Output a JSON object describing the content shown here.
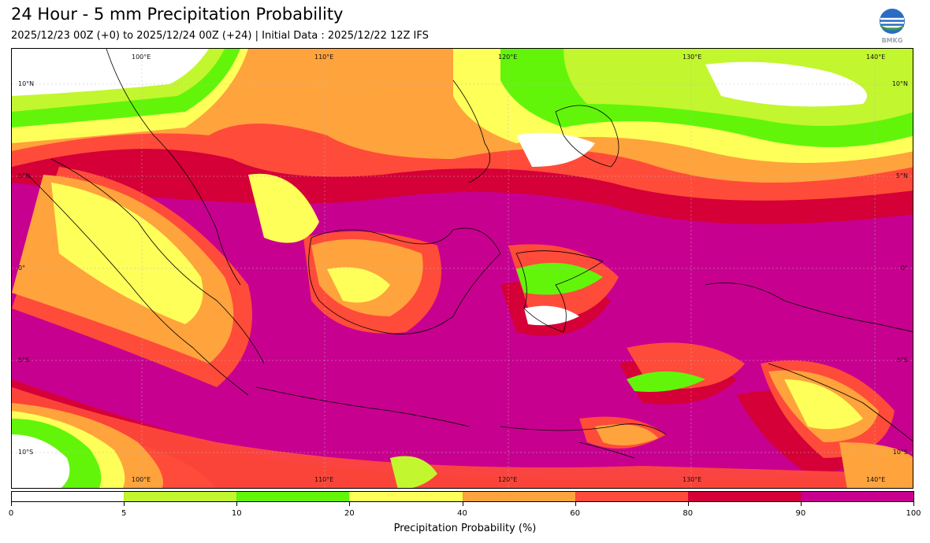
{
  "header": {
    "title": "24 Hour - 5 mm Precipitation Probability",
    "subtitle": "2025/12/23 00Z (+0) to 2025/12/24 00Z (+24) | Initial Data : 2025/12/22 12Z IFS",
    "logo_text": "BMKG"
  },
  "map": {
    "lon_labels_top": [
      "100°E",
      "110°E",
      "120°E",
      "130°E",
      "140°E"
    ],
    "lon_labels_bottom": [
      "100°E",
      "110°E",
      "120°E",
      "130°E",
      "140°E"
    ],
    "lat_labels_left": [
      "10°N",
      "5°N",
      "0°",
      "5°S",
      "10°S"
    ],
    "lat_labels_right": [
      "10°N",
      "5°N",
      "0°",
      "5°S",
      "10°S"
    ]
  },
  "colorbar": {
    "label": "Precipitation Probability (%)",
    "ticks": [
      "0",
      "5",
      "10",
      "20",
      "40",
      "60",
      "80",
      "90",
      "100"
    ],
    "colors": [
      "#ffffff",
      "#c2f62e",
      "#62f50a",
      "#ffff5a",
      "#ffa33c",
      "#ff4b3a",
      "#d40037",
      "#c8008f"
    ]
  }
}
